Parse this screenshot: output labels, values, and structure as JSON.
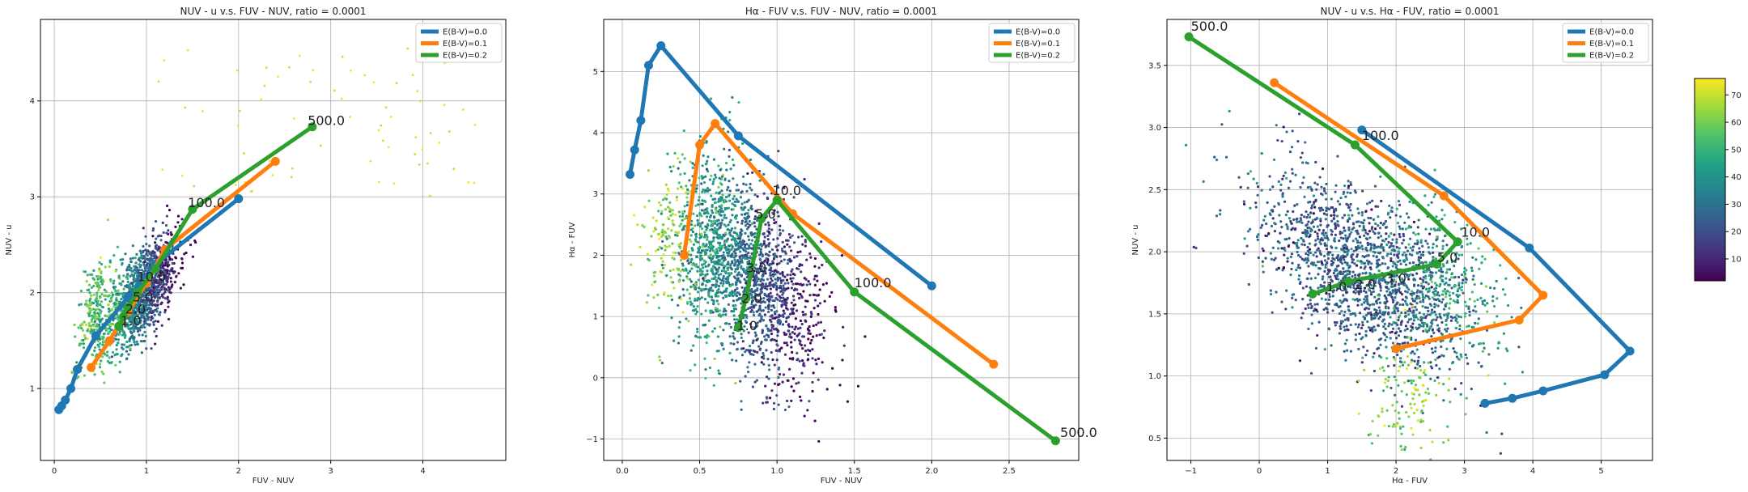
{
  "chart_data": [
    {
      "type": "line",
      "title": "NUV - u v.s. FUV - NUV, ratio = 0.0001",
      "xlabel": "FUV - NUV",
      "ylabel": "NUV - u",
      "xlim": [
        -0.15,
        4.9
      ],
      "ylim": [
        0.25,
        4.85
      ],
      "xticks": [
        "0",
        "1",
        "2",
        "3",
        "4"
      ],
      "yticks": [
        "1",
        "2",
        "3",
        "4"
      ],
      "grid": true,
      "legend_position": "top-right",
      "legend": [
        "E(B-V)=0.0",
        "E(B-V)=0.1",
        "E(B-V)=0.2"
      ],
      "series": [
        {
          "name": "E(B-V)=0.0",
          "x": [
            0.05,
            0.08,
            0.12,
            0.18,
            0.25,
            0.45,
            0.8,
            1.1,
            2.0
          ],
          "y": [
            0.78,
            0.82,
            0.88,
            1.0,
            1.2,
            1.55,
            1.95,
            2.3,
            2.98
          ]
        },
        {
          "name": "E(B-V)=0.1",
          "x": [
            0.4,
            0.6,
            0.8,
            1.0,
            1.2,
            2.4
          ],
          "y": [
            1.22,
            1.5,
            1.8,
            2.1,
            2.45,
            3.37
          ]
        },
        {
          "name": "E(B-V)=0.2",
          "x": [
            0.7,
            0.75,
            0.8,
            0.9,
            1.1,
            1.5,
            2.8
          ],
          "y": [
            1.65,
            1.75,
            1.85,
            2.0,
            2.25,
            2.87,
            3.73
          ]
        }
      ],
      "annotations": [
        {
          "text": "500.0",
          "x": 2.75,
          "y": 3.75
        },
        {
          "text": "100.0",
          "x": 1.45,
          "y": 2.89
        },
        {
          "text": "10.0",
          "x": 0.9,
          "y": 2.12
        },
        {
          "text": "5.0",
          "x": 0.85,
          "y": 1.91
        },
        {
          "text": "2.0",
          "x": 0.77,
          "y": 1.78
        },
        {
          "text": "1.0",
          "x": 0.72,
          "y": 1.66
        }
      ]
    },
    {
      "type": "line",
      "title": "Hα - FUV v.s. FUV - NUV, ratio = 0.0001",
      "xlabel": "FUV - NUV",
      "ylabel": "Hα - FUV",
      "xlim": [
        -0.12,
        2.95
      ],
      "ylim": [
        -1.35,
        5.85
      ],
      "xticks": [
        "0.0",
        "0.5",
        "1.0",
        "1.5",
        "2.0",
        "2.5"
      ],
      "yticks": [
        "−1",
        "0",
        "1",
        "2",
        "3",
        "4",
        "5"
      ],
      "grid": true,
      "legend_position": "top-right",
      "legend": [
        "E(B-V)=0.0",
        "E(B-V)=0.1",
        "E(B-V)=0.2"
      ],
      "series": [
        {
          "name": "E(B-V)=0.0",
          "x": [
            0.05,
            0.08,
            0.12,
            0.17,
            0.25,
            0.75,
            2.0
          ],
          "y": [
            3.32,
            3.72,
            4.2,
            5.1,
            5.42,
            3.95,
            1.5
          ]
        },
        {
          "name": "E(B-V)=0.1",
          "x": [
            0.4,
            0.5,
            0.6,
            1.1,
            2.4
          ],
          "y": [
            2.0,
            3.8,
            4.15,
            2.68,
            0.22
          ]
        },
        {
          "name": "E(B-V)=0.2",
          "x": [
            0.75,
            0.8,
            0.9,
            1.0,
            1.5,
            2.8
          ],
          "y": [
            0.82,
            1.3,
            2.6,
            2.9,
            1.4,
            -1.03
          ]
        }
      ],
      "annotations": [
        {
          "text": "10.0",
          "x": 0.97,
          "y": 2.98
        },
        {
          "text": "5.0",
          "x": 0.86,
          "y": 2.6
        },
        {
          "text": "3.0",
          "x": 0.8,
          "y": 1.72
        },
        {
          "text": "2.0",
          "x": 0.77,
          "y": 1.22
        },
        {
          "text": "1.0",
          "x": 0.74,
          "y": 0.78
        },
        {
          "text": "100.0",
          "x": 1.5,
          "y": 1.48
        },
        {
          "text": "500.0",
          "x": 2.83,
          "y": -0.97
        }
      ]
    },
    {
      "type": "line",
      "title": "NUV - u v.s. Hα - FUV, ratio = 0.0001",
      "xlabel": "Hα - FUV",
      "ylabel": "NUV - u",
      "xlim": [
        -1.35,
        5.75
      ],
      "ylim": [
        0.32,
        3.87
      ],
      "xticks": [
        "−1",
        "0",
        "1",
        "2",
        "3",
        "4",
        "5"
      ],
      "yticks": [
        "0.5",
        "1.0",
        "1.5",
        "2.0",
        "2.5",
        "3.0",
        "3.5"
      ],
      "grid": true,
      "legend_position": "top-right",
      "legend": [
        "E(B-V)=0.0",
        "E(B-V)=0.1",
        "E(B-V)=0.2"
      ],
      "series": [
        {
          "name": "E(B-V)=0.0",
          "x": [
            3.3,
            3.7,
            4.15,
            5.05,
            5.42,
            3.95,
            1.5
          ],
          "y": [
            0.78,
            0.82,
            0.88,
            1.01,
            1.2,
            2.03,
            2.98
          ]
        },
        {
          "name": "E(B-V)=0.1",
          "x": [
            2.0,
            3.8,
            4.15,
            2.7,
            0.22
          ],
          "y": [
            1.22,
            1.45,
            1.65,
            2.45,
            3.36
          ]
        },
        {
          "name": "E(B-V)=0.2",
          "x": [
            0.78,
            1.3,
            2.6,
            2.9,
            1.4,
            -1.03
          ],
          "y": [
            1.66,
            1.76,
            1.9,
            2.08,
            2.86,
            3.73
          ]
        }
      ],
      "annotations": [
        {
          "text": "500.0",
          "x": -1.0,
          "y": 3.78
        },
        {
          "text": "100.0",
          "x": 1.5,
          "y": 2.9
        },
        {
          "text": "10.0",
          "x": 2.95,
          "y": 2.12
        },
        {
          "text": "5.0",
          "x": 2.6,
          "y": 1.92
        },
        {
          "text": "3.0",
          "x": 1.85,
          "y": 1.75
        },
        {
          "text": "2.0",
          "x": 1.4,
          "y": 1.7
        },
        {
          "text": "1.0",
          "x": 0.98,
          "y": 1.68
        }
      ]
    }
  ],
  "colorbar": {
    "range": [
      2,
      76
    ],
    "ticks": [
      "10",
      "20",
      "30",
      "40",
      "50",
      "60",
      "70"
    ]
  },
  "colors": {
    "series": [
      "#1f77b4",
      "#ff7f0e",
      "#2ca02c"
    ],
    "grid": "#b0b0b0"
  }
}
